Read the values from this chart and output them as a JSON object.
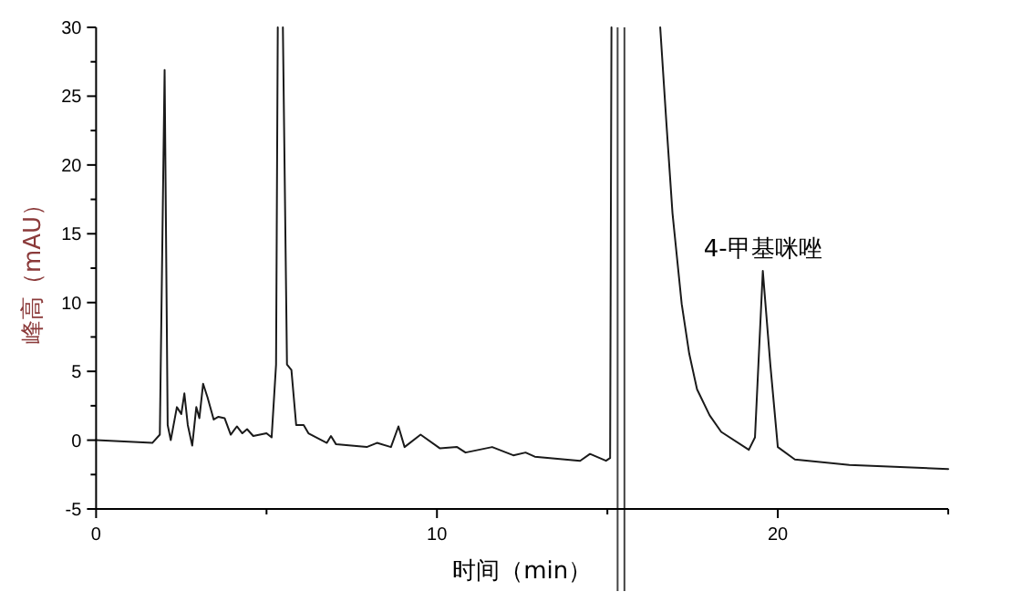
{
  "chart_data": {
    "type": "line",
    "xlabel": "时间（min）",
    "ylabel": "峰高（mAU）",
    "xlim": [
      0,
      25
    ],
    "ylim": [
      -5,
      30
    ],
    "xticks": [
      0,
      {
        "value": 5,
        "label": null
      },
      10,
      {
        "value": 15,
        "label": null
      },
      20,
      {
        "value": 25,
        "label": null
      }
    ],
    "yticks": [
      -5,
      {
        "value": -2.5,
        "label": null
      },
      0,
      {
        "value": 2.5,
        "label": null
      },
      5,
      {
        "value": 7.5,
        "label": null
      },
      10,
      {
        "value": 12.5,
        "label": null
      },
      15,
      {
        "value": 17.5,
        "label": null
      },
      20,
      {
        "value": 22.5,
        "label": null
      },
      25,
      {
        "value": 27.5,
        "label": null
      },
      30
    ],
    "series": [
      {
        "color": "#1a1a1a",
        "x": [
          0,
          1.65,
          1.87,
          2.01,
          2.1,
          2.19,
          2.37,
          2.5,
          2.59,
          2.69,
          2.82,
          2.94,
          3.03,
          3.14,
          3.27,
          3.45,
          3.59,
          3.77,
          3.95,
          4.13,
          4.29,
          4.43,
          4.61,
          5.0,
          5.15,
          5.28,
          5.33
        ],
        "values": [
          0,
          -0.2,
          0.4,
          26.9,
          1.1,
          0,
          2.4,
          1.9,
          3.4,
          1.1,
          -0.4,
          2.4,
          1.6,
          4.1,
          3.1,
          1.5,
          1.7,
          1.6,
          0.4,
          1,
          0.5,
          0.8,
          0.3,
          0.5,
          0.2,
          5.5,
          30
        ]
      },
      {
        "color": "#1a1a1a",
        "x": [
          5.48,
          5.6,
          5.73,
          5.87,
          6.09,
          6.23,
          6.77,
          6.89,
          7.04,
          7.94,
          8.24,
          8.65,
          8.87,
          9.05,
          9.52,
          10.09,
          10.59,
          10.84,
          11.62,
          12.24,
          12.6,
          12.87,
          14.2,
          14.49,
          14.96,
          15.08,
          15.12
        ],
        "values": [
          30,
          5.5,
          5.1,
          1.1,
          1.1,
          0.5,
          -0.2,
          0.3,
          -0.3,
          -0.5,
          -0.2,
          -0.5,
          1,
          -0.5,
          0.4,
          -0.6,
          -0.5,
          -0.9,
          -0.5,
          -1.1,
          -0.9,
          -1.2,
          -1.5,
          -1,
          -1.5,
          -1.3,
          30
        ]
      },
      {
        "color": "#1a1a1a",
        "x": [
          16.55,
          16.73,
          16.91,
          17.18,
          17.4,
          17.63,
          18.0,
          18.34,
          19.15,
          19.33,
          19.56,
          19.78,
          20.0,
          20.5,
          22.1,
          25
        ],
        "values": [
          30,
          23.1,
          16.5,
          9.9,
          6.3,
          3.7,
          1.8,
          0.6,
          -0.7,
          0.2,
          12.3,
          5.5,
          -0.5,
          -1.4,
          -1.8,
          -2.1
        ]
      }
    ],
    "annotations": [
      {
        "text": "4-甲基咪唑",
        "x": 19.56,
        "y": 12.3
      }
    ],
    "ref_lines": [
      {
        "axis": "x",
        "value": 15.3,
        "color": "#444444"
      },
      {
        "axis": "x",
        "value": 15.5,
        "color": "#444444"
      }
    ]
  }
}
